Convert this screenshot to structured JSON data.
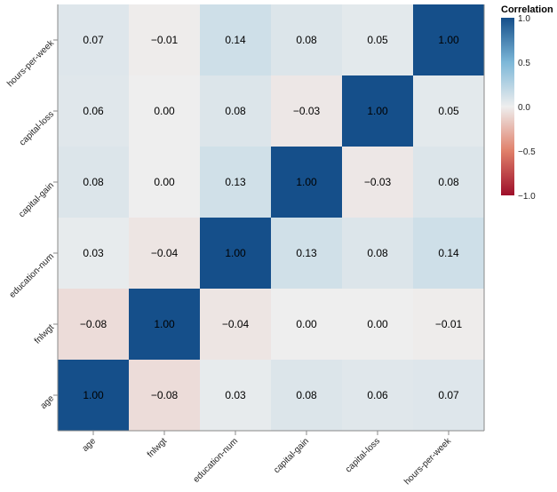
{
  "chart_data": {
    "type": "heatmap",
    "x_categories": [
      "age",
      "fnlwgt",
      "education-num",
      "capital-gain",
      "capital-loss",
      "hours-per-week"
    ],
    "y_categories": [
      "age",
      "fnlwgt",
      "education-num",
      "capital-gain",
      "capital-loss",
      "hours-per-week"
    ],
    "values": [
      [
        1.0,
        -0.08,
        0.03,
        0.08,
        0.06,
        0.07
      ],
      [
        -0.08,
        1.0,
        -0.04,
        0.0,
        0.0,
        -0.01
      ],
      [
        0.03,
        -0.04,
        1.0,
        0.13,
        0.08,
        0.14
      ],
      [
        0.08,
        0.0,
        0.13,
        1.0,
        -0.03,
        0.08
      ],
      [
        0.06,
        0.0,
        0.08,
        -0.03,
        1.0,
        0.05
      ],
      [
        0.07,
        -0.01,
        0.14,
        0.08,
        0.05,
        1.0
      ]
    ],
    "value_labels": [
      [
        "1.00",
        "−0.08",
        "0.03",
        "0.08",
        "0.06",
        "0.07"
      ],
      [
        "−0.08",
        "1.00",
        "−0.04",
        "0.00",
        "0.00",
        "−0.01"
      ],
      [
        "0.03",
        "−0.04",
        "1.00",
        "0.13",
        "0.08",
        "0.14"
      ],
      [
        "0.08",
        "0.00",
        "0.13",
        "1.00",
        "−0.03",
        "0.08"
      ],
      [
        "0.06",
        "0.00",
        "0.08",
        "−0.03",
        "1.00",
        "0.05"
      ],
      [
        "0.07",
        "−0.01",
        "0.14",
        "0.08",
        "0.05",
        "1.00"
      ]
    ],
    "legend": {
      "title": "Correlation",
      "range": [
        -1,
        1
      ],
      "ticks": [
        1.0,
        0.5,
        0.0,
        -0.5,
        -1.0
      ],
      "tick_labels": [
        "1.0",
        "0.5",
        "0.0",
        "−0.5",
        "−1.0"
      ],
      "placement": "right"
    },
    "colorscale": [
      [
        -1,
        "#9e0f2a"
      ],
      [
        -0.5,
        "#e0806a"
      ],
      [
        0,
        "#eeeeee"
      ],
      [
        0.5,
        "#7cb7d8"
      ],
      [
        1,
        "#154f8a"
      ]
    ],
    "grid": false
  }
}
